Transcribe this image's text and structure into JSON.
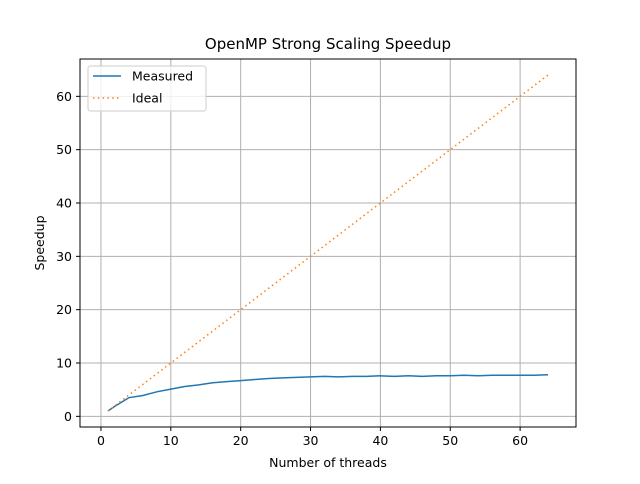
{
  "chart_data": {
    "type": "line",
    "title": "OpenMP Strong Scaling Speedup",
    "xlabel": "Number of threads",
    "ylabel": "Speedup",
    "xlim": [
      -3,
      68
    ],
    "ylim": [
      -2,
      67
    ],
    "xticks": [
      0,
      10,
      20,
      30,
      40,
      50,
      60
    ],
    "yticks": [
      0,
      10,
      20,
      30,
      40,
      50,
      60
    ],
    "grid": true,
    "legend_position": "top-left",
    "series": [
      {
        "name": "Measured",
        "color": "#1f77b4",
        "style": "solid",
        "x": [
          1,
          2,
          4,
          6,
          8,
          10,
          12,
          14,
          16,
          18,
          20,
          22,
          24,
          26,
          28,
          30,
          32,
          34,
          36,
          38,
          40,
          42,
          44,
          46,
          48,
          50,
          52,
          54,
          56,
          58,
          60,
          62,
          64
        ],
        "y": [
          1.0,
          1.9,
          3.5,
          3.9,
          4.6,
          5.1,
          5.6,
          5.9,
          6.3,
          6.5,
          6.7,
          6.9,
          7.1,
          7.2,
          7.3,
          7.4,
          7.5,
          7.4,
          7.5,
          7.5,
          7.6,
          7.5,
          7.6,
          7.5,
          7.6,
          7.6,
          7.7,
          7.6,
          7.7,
          7.7,
          7.7,
          7.7,
          7.8
        ]
      },
      {
        "name": "Ideal",
        "color": "#ff7f0e",
        "style": "dotted",
        "x": [
          1,
          64
        ],
        "y": [
          1,
          64
        ]
      }
    ]
  }
}
